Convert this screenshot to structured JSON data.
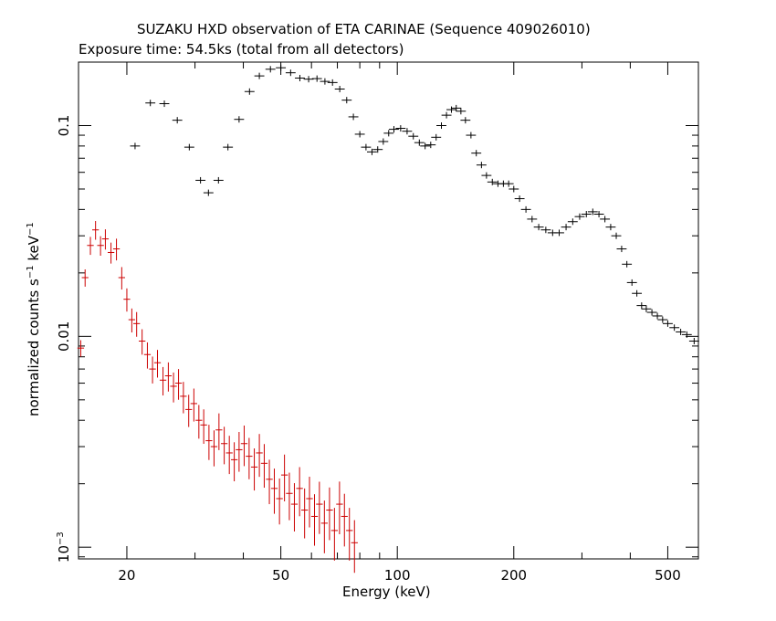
{
  "chart_data": {
    "type": "scatter",
    "title": "SUZAKU HXD observation of ETA CARINAE (Sequence 409026010)",
    "subtitle": "Exposure time: 54.5ks (total from all detectors)",
    "xlabel": "Energy (keV)",
    "ylabel": {
      "prefix": "normalized counts s",
      "exp1": "−1",
      "middle": " keV",
      "exp2": "−1"
    },
    "xscale": "log",
    "yscale": "log",
    "xlim": [
      15,
      600
    ],
    "ylim": [
      0.00088,
      0.2
    ],
    "x_ticks": [
      {
        "value": 20,
        "label": "20"
      },
      {
        "value": 50,
        "label": "50"
      },
      {
        "value": 100,
        "label": "100"
      },
      {
        "value": 200,
        "label": "200"
      },
      {
        "value": 500,
        "label": "500"
      }
    ],
    "y_ticks": [
      {
        "value": 0.1,
        "label": "0.1"
      },
      {
        "value": 0.01,
        "label": "0.01"
      },
      {
        "value": 0.001,
        "label": "10",
        "exp": "−3"
      }
    ],
    "grid": false,
    "legend": "none",
    "series": [
      {
        "color": "#000000",
        "points": [
          [
            21,
            0.08
          ],
          [
            23,
            0.128
          ],
          [
            25,
            0.127
          ],
          [
            27,
            0.106
          ],
          [
            29,
            0.079
          ],
          [
            31,
            0.055
          ],
          [
            32.5,
            0.048
          ],
          [
            34.5,
            0.055
          ],
          [
            36.5,
            0.079
          ],
          [
            39,
            0.107
          ],
          [
            41.5,
            0.145
          ],
          [
            44,
            0.172
          ],
          [
            47,
            0.185
          ],
          [
            50,
            0.188
          ],
          [
            53,
            0.178
          ],
          [
            56,
            0.168
          ],
          [
            59,
            0.166
          ],
          [
            62,
            0.167
          ],
          [
            65,
            0.162
          ],
          [
            68,
            0.16
          ],
          [
            71,
            0.149
          ],
          [
            74,
            0.132
          ],
          [
            77,
            0.11
          ],
          [
            80,
            0.091
          ],
          [
            83,
            0.079
          ],
          [
            86,
            0.075
          ],
          [
            89,
            0.077
          ],
          [
            92,
            0.084
          ],
          [
            95,
            0.092
          ],
          [
            98,
            0.096
          ],
          [
            102,
            0.097
          ],
          [
            106,
            0.094
          ],
          [
            110,
            0.089
          ],
          [
            114,
            0.083
          ],
          [
            118,
            0.08
          ],
          [
            122,
            0.081
          ],
          [
            126,
            0.088
          ],
          [
            130,
            0.1
          ],
          [
            134,
            0.112
          ],
          [
            138,
            0.119
          ],
          [
            142,
            0.121
          ],
          [
            146,
            0.117
          ],
          [
            150,
            0.106
          ],
          [
            155,
            0.09
          ],
          [
            160,
            0.074
          ],
          [
            165,
            0.065
          ],
          [
            170,
            0.058
          ],
          [
            176,
            0.054
          ],
          [
            182,
            0.053
          ],
          [
            188,
            0.053
          ],
          [
            194,
            0.053
          ],
          [
            200,
            0.05
          ],
          [
            207,
            0.045
          ],
          [
            215,
            0.04
          ],
          [
            223,
            0.036
          ],
          [
            232,
            0.033
          ],
          [
            242,
            0.032
          ],
          [
            252,
            0.031
          ],
          [
            262,
            0.031
          ],
          [
            273,
            0.033
          ],
          [
            284,
            0.035
          ],
          [
            296,
            0.037
          ],
          [
            308,
            0.038
          ],
          [
            320,
            0.039
          ],
          [
            332,
            0.038
          ],
          [
            344,
            0.036
          ],
          [
            356,
            0.033
          ],
          [
            368,
            0.03
          ],
          [
            380,
            0.026
          ],
          [
            392,
            0.022
          ],
          [
            404,
            0.018
          ],
          [
            416,
            0.016
          ],
          [
            428,
            0.014
          ],
          [
            440,
            0.0135
          ],
          [
            455,
            0.013
          ],
          [
            470,
            0.0125
          ],
          [
            485,
            0.012
          ],
          [
            500,
            0.0115
          ],
          [
            520,
            0.011
          ],
          [
            540,
            0.0105
          ],
          [
            560,
            0.0102
          ],
          [
            585,
            0.0095
          ]
        ]
      },
      {
        "color": "#cc0000",
        "points": [
          [
            15.2,
            0.0088
          ],
          [
            15.6,
            0.019
          ],
          [
            16.1,
            0.027
          ],
          [
            16.6,
            0.032
          ],
          [
            17.1,
            0.027
          ],
          [
            17.6,
            0.029
          ],
          [
            18.2,
            0.025
          ],
          [
            18.8,
            0.026
          ],
          [
            19.4,
            0.019
          ],
          [
            20,
            0.015
          ],
          [
            20.6,
            0.012
          ],
          [
            21.2,
            0.0115
          ],
          [
            21.9,
            0.0095
          ],
          [
            22.6,
            0.0082
          ],
          [
            23.3,
            0.007
          ],
          [
            24,
            0.0075
          ],
          [
            24.8,
            0.0062
          ],
          [
            25.6,
            0.0065
          ],
          [
            26.4,
            0.0058
          ],
          [
            27.2,
            0.006
          ],
          [
            28,
            0.0052
          ],
          [
            28.9,
            0.0045
          ],
          [
            29.8,
            0.0048
          ],
          [
            30.7,
            0.004
          ],
          [
            31.6,
            0.0038
          ],
          [
            32.6,
            0.0032
          ],
          [
            33.6,
            0.003
          ],
          [
            34.6,
            0.0036
          ],
          [
            35.7,
            0.0031
          ],
          [
            36.8,
            0.0028
          ],
          [
            37.9,
            0.0026
          ],
          [
            39,
            0.0029
          ],
          [
            40.2,
            0.0031
          ],
          [
            41.4,
            0.0027
          ],
          [
            42.7,
            0.0024
          ],
          [
            44,
            0.0028
          ],
          [
            45.3,
            0.0025
          ],
          [
            46.7,
            0.0021
          ],
          [
            48.1,
            0.0019
          ],
          [
            49.6,
            0.0017
          ],
          [
            51.1,
            0.0022
          ],
          [
            52.6,
            0.0018
          ],
          [
            54.2,
            0.0016
          ],
          [
            55.9,
            0.0019
          ],
          [
            57.6,
            0.0015
          ],
          [
            59.3,
            0.0017
          ],
          [
            61.1,
            0.0014
          ],
          [
            62.9,
            0.0016
          ],
          [
            64.8,
            0.0013
          ],
          [
            66.8,
            0.0015
          ],
          [
            68.8,
            0.0012
          ],
          [
            70.9,
            0.0016
          ],
          [
            73,
            0.0014
          ],
          [
            75.2,
            0.0012
          ],
          [
            77.5,
            0.00105
          ]
        ]
      }
    ]
  }
}
